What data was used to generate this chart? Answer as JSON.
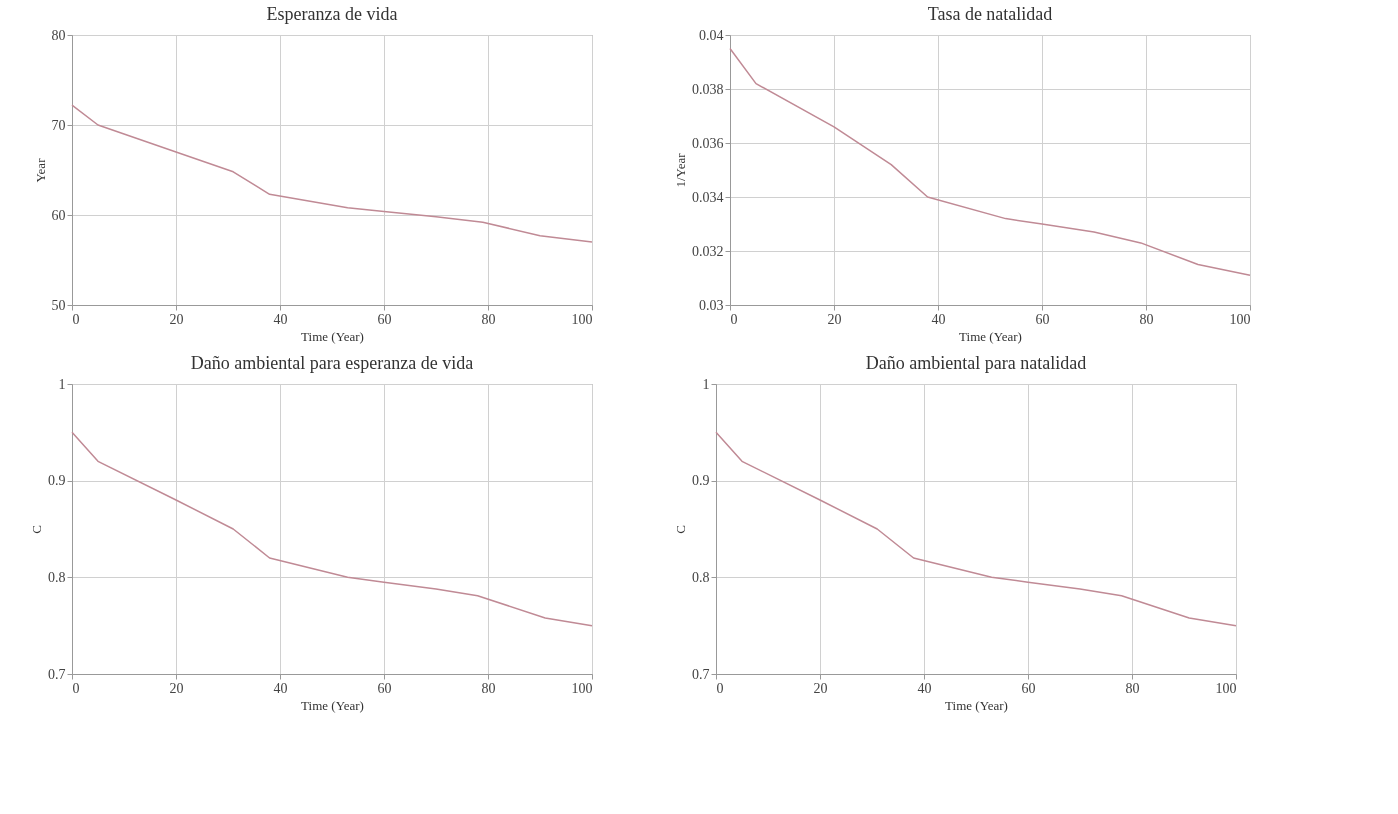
{
  "chart_data": [
    {
      "type": "line",
      "title": "Esperanza de vida",
      "xlabel": "Time (Year)",
      "ylabel": "Year",
      "x": [
        0,
        5,
        20,
        31,
        38,
        53,
        60,
        70,
        79,
        90,
        100
      ],
      "series": [
        {
          "color": "#c08a95",
          "values": [
            72.2,
            70.0,
            67.0,
            64.8,
            62.3,
            60.8,
            60.4,
            59.8,
            59.2,
            57.7,
            57.0
          ]
        }
      ],
      "xlim": [
        0,
        100
      ],
      "xticks": [
        0,
        20,
        40,
        60,
        80,
        100
      ],
      "ylim": [
        50,
        80
      ],
      "yticks": [
        50,
        60,
        70,
        80
      ],
      "grid": true,
      "marker": "none",
      "line_style": "solid"
    },
    {
      "type": "line",
      "title": "Tasa de natalidad",
      "xlabel": "Time (Year)",
      "ylabel": "1/Year",
      "x": [
        0,
        5,
        20,
        31,
        38,
        53,
        60,
        70,
        79,
        90,
        100
      ],
      "series": [
        {
          "color": "#c08a95",
          "values": [
            0.0395,
            0.0382,
            0.0366,
            0.0352,
            0.034,
            0.0332,
            0.033,
            0.0327,
            0.0323,
            0.0315,
            0.0311
          ]
        }
      ],
      "xlim": [
        0,
        100
      ],
      "xticks": [
        0,
        20,
        40,
        60,
        80,
        100
      ],
      "ylim": [
        0.03,
        0.04
      ],
      "yticks": [
        0.03,
        0.032,
        0.034,
        0.036,
        0.038,
        0.04
      ],
      "grid": true,
      "marker": "none",
      "line_style": "solid"
    },
    {
      "type": "line",
      "title": "Daño ambiental para esperanza de vida",
      "xlabel": "Time (Year)",
      "ylabel": "C",
      "x": [
        0,
        5,
        20,
        31,
        38,
        53,
        60,
        70,
        78,
        91,
        100
      ],
      "series": [
        {
          "color": "#c08a95",
          "values": [
            0.95,
            0.92,
            0.88,
            0.85,
            0.82,
            0.8,
            0.795,
            0.788,
            0.781,
            0.758,
            0.75
          ]
        }
      ],
      "xlim": [
        0,
        100
      ],
      "xticks": [
        0,
        20,
        40,
        60,
        80,
        100
      ],
      "ylim": [
        0.7,
        1
      ],
      "yticks": [
        0.7,
        0.8,
        0.9,
        1
      ],
      "grid": true,
      "marker": "none",
      "line_style": "solid"
    },
    {
      "type": "line",
      "title": "Daño ambiental para natalidad",
      "xlabel": "Time (Year)",
      "ylabel": "C",
      "x": [
        0,
        5,
        20,
        31,
        38,
        53,
        60,
        70,
        78,
        91,
        100
      ],
      "series": [
        {
          "color": "#c08a95",
          "values": [
            0.95,
            0.92,
            0.88,
            0.85,
            0.82,
            0.8,
            0.795,
            0.788,
            0.781,
            0.758,
            0.75
          ]
        }
      ],
      "xlim": [
        0,
        100
      ],
      "xticks": [
        0,
        20,
        40,
        60,
        80,
        100
      ],
      "ylim": [
        0.7,
        1
      ],
      "yticks": [
        0.7,
        0.8,
        0.9,
        1
      ],
      "grid": true,
      "marker": "none",
      "line_style": "solid"
    }
  ]
}
